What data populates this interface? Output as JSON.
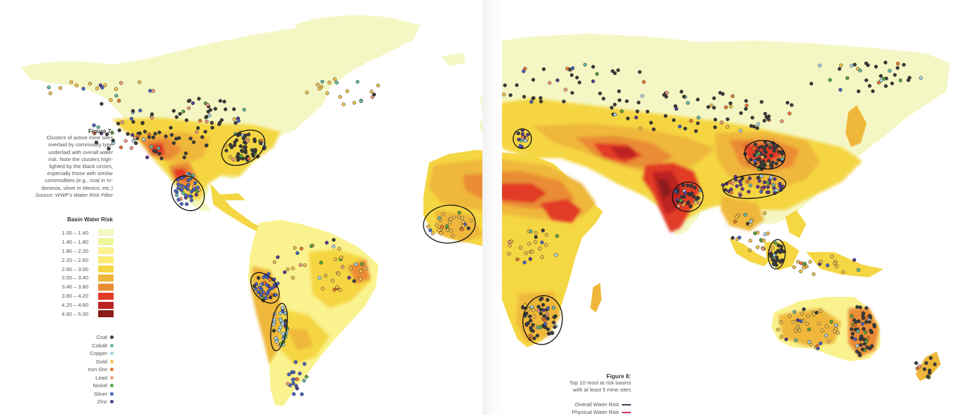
{
  "figure7": {
    "title": "Figure 7:",
    "lines": [
      "Clusters of active mine sites",
      "overlaid by commodity type",
      "underlaid with overall water",
      "risk. Note the clusters high-",
      "lighted by the black circles,",
      "especially those with similar",
      "commodities (e.g., coal in In-",
      "donesia, silver in Mexico, etc.)"
    ],
    "source": "Source: WWF's Water Risk Filter"
  },
  "legend": {
    "title": "Basin Water Risk",
    "ranges": [
      {
        "label": "1.00 – 1.40",
        "color": "#f4f7c3"
      },
      {
        "label": "1.40 – 1.80",
        "color": "#eef59a"
      },
      {
        "label": "1.80 – 2.20",
        "color": "#faf28f"
      },
      {
        "label": "2.20 – 2.60",
        "color": "#fbea76"
      },
      {
        "label": "2.60 – 3.00",
        "color": "#f5d643"
      },
      {
        "label": "3.00 – 3.40",
        "color": "#efb73a"
      },
      {
        "label": "3.40 – 3.80",
        "color": "#ea8c34"
      },
      {
        "label": "3.80 – 4.20",
        "color": "#e23a27"
      },
      {
        "label": "4.20 – 4.60",
        "color": "#bc2423"
      },
      {
        "label": "4.60 – 5.00",
        "color": "#8d1c1c"
      }
    ]
  },
  "commodities": [
    {
      "label": "Coal",
      "color": "#3b3b3b"
    },
    {
      "label": "Cobalt",
      "color": "#66b8a6"
    },
    {
      "label": "Copper",
      "color": "#a9d3e6"
    },
    {
      "label": "Gold",
      "color": "#f2c14e"
    },
    {
      "label": "Iron Ore",
      "color": "#e9772f"
    },
    {
      "label": "Lead",
      "color": "#f39a84"
    },
    {
      "label": "Nickel",
      "color": "#5aa53d"
    },
    {
      "label": "Silver",
      "color": "#4a62c2"
    },
    {
      "label": "Zinc",
      "color": "#5b3b8f"
    }
  ],
  "figure8": {
    "title": "Figure 8:",
    "lines": [
      "Top 10 most at risk basins",
      "with at least 5 mine sites"
    ],
    "legend": [
      {
        "label": "Overall Water Risk",
        "color": "#4a3d57"
      },
      {
        "label": "Physical Water Risk",
        "color": "#c7356e"
      }
    ]
  },
  "map": {
    "type": "world map",
    "highlighted_cluster_count": 11
  }
}
